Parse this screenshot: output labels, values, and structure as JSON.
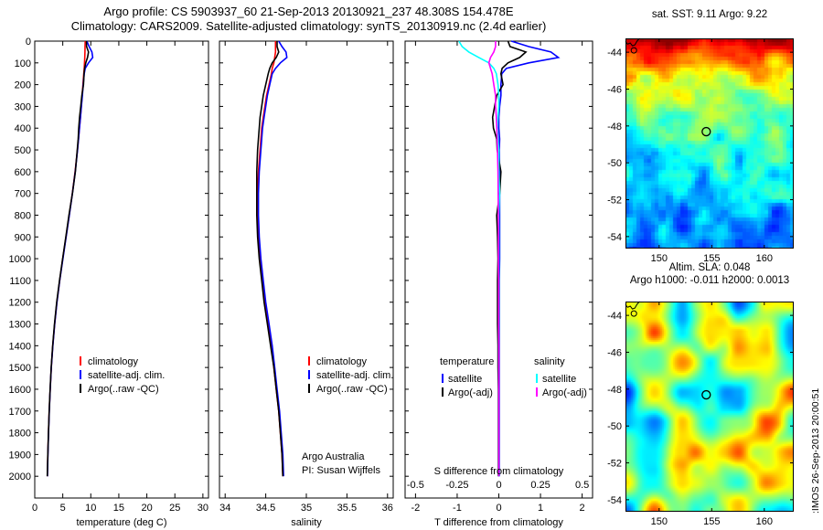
{
  "header": {
    "title_line1": "Argo profile: CS 5903937_60 21-Sep-2013 20130921_237 48.308S 154.478E",
    "title_line2": "Climatology: CARS2009. Satellite-adjusted climatology: synTS_20130919.nc (2.4d earlier)"
  },
  "watermark": ":IMOS 26-Sep-2013 20:00:51",
  "colors": {
    "climatology": "#ff0000",
    "satellite_adjusted": "#0000ff",
    "argo": "#000000",
    "satellite_salinity": "#00ffff",
    "argo_salinity": "#ff00ff"
  },
  "chart_data": [
    {
      "id": "temperature-profile",
      "type": "line",
      "xlabel": "temperature (deg C)",
      "xlim": [
        0,
        31
      ],
      "xticks": [
        0,
        5,
        10,
        15,
        20,
        25,
        30
      ],
      "ylim": [
        0,
        2100
      ],
      "yticks": [
        0,
        100,
        200,
        300,
        400,
        500,
        600,
        700,
        800,
        900,
        1000,
        1100,
        1200,
        1300,
        1400,
        1500,
        1600,
        1700,
        1800,
        1900,
        2000
      ],
      "legend": [
        {
          "label": "climatology",
          "color": "#ff0000"
        },
        {
          "label": "satellite-adj. clim.",
          "color": "#0000ff"
        },
        {
          "label": "Argo(..raw -QC)",
          "color": "#000000"
        }
      ],
      "depth_m": [
        0,
        25,
        50,
        75,
        100,
        125,
        150,
        200,
        250,
        300,
        350,
        400,
        450,
        500,
        600,
        700,
        800,
        900,
        1000,
        1100,
        1200,
        1300,
        1400,
        1500,
        1600,
        1700,
        1800,
        1900,
        2000
      ],
      "series": [
        {
          "name": "climatology",
          "color": "#ff0000",
          "values": [
            9.0,
            8.98,
            8.95,
            8.92,
            8.88,
            8.82,
            8.75,
            8.6,
            8.45,
            8.3,
            8.15,
            7.98,
            7.8,
            7.62,
            7.2,
            6.7,
            6.15,
            5.58,
            5.0,
            4.45,
            3.95,
            3.55,
            3.22,
            2.95,
            2.75,
            2.58,
            2.45,
            2.34,
            2.25
          ]
        },
        {
          "name": "satellite-adj. clim.",
          "color": "#0000ff",
          "values": [
            9.3,
            9.7,
            10.2,
            10.35,
            9.6,
            9.0,
            8.82,
            8.65,
            8.5,
            8.32,
            8.15,
            7.98,
            7.82,
            7.63,
            7.22,
            6.72,
            6.17,
            5.6,
            5.02,
            4.46,
            3.96,
            3.56,
            3.23,
            2.96,
            2.76,
            2.59,
            2.46,
            2.35,
            2.26
          ]
        },
        {
          "name": "Argo(..raw -QC)",
          "color": "#000000",
          "values": [
            9.22,
            9.25,
            9.6,
            9.42,
            9.1,
            8.9,
            8.8,
            8.7,
            8.4,
            8.2,
            8.0,
            7.85,
            7.75,
            7.58,
            7.25,
            6.72,
            6.1,
            5.55,
            4.98,
            4.42,
            3.92,
            3.52,
            3.2,
            2.93,
            2.74,
            2.57,
            2.44,
            2.33,
            2.24
          ]
        }
      ]
    },
    {
      "id": "salinity-profile",
      "type": "line",
      "xlabel": "salinity",
      "xlim": [
        33.93,
        36.07
      ],
      "xticks": [
        34,
        34.5,
        35,
        35.5,
        36
      ],
      "ylim": [
        0,
        2100
      ],
      "yticks": [
        0,
        100,
        200,
        300,
        400,
        500,
        600,
        700,
        800,
        900,
        1000,
        1100,
        1200,
        1300,
        1400,
        1500,
        1600,
        1700,
        1800,
        1900,
        2000
      ],
      "legend": [
        {
          "label": "climatology",
          "color": "#ff0000"
        },
        {
          "label": "satellite-adj. clim.",
          "color": "#0000ff"
        },
        {
          "label": "Argo(..raw -QC)",
          "color": "#000000"
        }
      ],
      "notes": [
        "Argo Australia",
        "PI: Susan Wijffels"
      ],
      "depth_m": [
        0,
        25,
        50,
        75,
        100,
        125,
        150,
        200,
        250,
        300,
        350,
        400,
        450,
        500,
        600,
        700,
        800,
        900,
        1000,
        1100,
        1200,
        1300,
        1400,
        1500,
        1600,
        1700,
        1800,
        1900,
        2000
      ],
      "series": [
        {
          "name": "climatology",
          "color": "#ff0000",
          "values": [
            34.62,
            34.62,
            34.62,
            34.61,
            34.6,
            34.58,
            34.57,
            34.54,
            34.51,
            34.49,
            34.47,
            34.45,
            34.44,
            34.43,
            34.41,
            34.4,
            34.4,
            34.41,
            34.43,
            34.46,
            34.49,
            34.53,
            34.57,
            34.6,
            34.63,
            34.66,
            34.68,
            34.7,
            34.71
          ]
        },
        {
          "name": "satellite-adj. clim.",
          "color": "#0000ff",
          "values": [
            34.66,
            34.7,
            34.75,
            34.76,
            34.68,
            34.62,
            34.58,
            34.55,
            34.52,
            34.5,
            34.48,
            34.46,
            34.45,
            34.44,
            34.42,
            34.41,
            34.41,
            34.42,
            34.44,
            34.47,
            34.5,
            34.54,
            34.58,
            34.61,
            34.64,
            34.67,
            34.69,
            34.71,
            34.72
          ]
        },
        {
          "name": "Argo(..raw -QC)",
          "color": "#000000",
          "values": [
            34.64,
            34.64,
            34.66,
            34.63,
            34.58,
            34.55,
            34.53,
            34.5,
            34.47,
            34.45,
            34.43,
            34.42,
            34.41,
            34.4,
            34.39,
            34.39,
            34.39,
            34.4,
            34.42,
            34.45,
            34.48,
            34.52,
            34.56,
            34.6,
            34.63,
            34.66,
            34.68,
            34.7,
            34.71
          ]
        }
      ]
    },
    {
      "id": "difference-profile",
      "type": "line",
      "xlabel": "T difference from climatology",
      "x2label": "S difference from climatology",
      "xlim": [
        -2.25,
        2.25
      ],
      "xticks": [
        -2,
        -1,
        0,
        1,
        2
      ],
      "x2ticks": [
        -0.5,
        -0.25,
        0,
        0.25,
        0.5
      ],
      "s_scale_factor": 4,
      "ylim": [
        0,
        2100
      ],
      "yticks": [
        0,
        100,
        200,
        300,
        400,
        500,
        600,
        700,
        800,
        900,
        1000,
        1100,
        1200,
        1300,
        1400,
        1500,
        1600,
        1700,
        1800,
        1900,
        2000
      ],
      "legend_groups": [
        {
          "header": "temperature",
          "entries": [
            {
              "label": "satellite",
              "color": "#0000ff"
            },
            {
              "label": "Argo(-adj)",
              "color": "#000000"
            }
          ]
        },
        {
          "header": "salinity",
          "entries": [
            {
              "label": "satellite",
              "color": "#00ffff"
            },
            {
              "label": "Argo(-adj)",
              "color": "#ff00ff"
            }
          ]
        }
      ],
      "depth_m": [
        0,
        25,
        50,
        75,
        100,
        125,
        150,
        200,
        250,
        300,
        350,
        400,
        450,
        500,
        600,
        700,
        800,
        900,
        1000,
        1100,
        1200,
        1300,
        1400,
        1500,
        1600,
        1700,
        1800,
        1900,
        2000
      ],
      "series": [
        {
          "name": "satellite T difference",
          "axis": "T",
          "color": "#0000ff",
          "values": [
            0.3,
            0.72,
            1.25,
            1.43,
            0.72,
            0.18,
            0.07,
            0.05,
            0.05,
            0.02,
            0.0,
            0.0,
            0.02,
            0.01,
            0.02,
            0.02,
            0.02,
            0.02,
            0.02,
            0.01,
            0.01,
            0.01,
            0.01,
            0.01,
            0.01,
            0.01,
            0.01,
            0.01,
            0.01
          ]
        },
        {
          "name": "Argo(-adj) T difference",
          "axis": "T",
          "color": "#000000",
          "values": [
            0.22,
            0.27,
            0.65,
            0.5,
            0.22,
            0.08,
            0.05,
            0.1,
            -0.05,
            -0.1,
            -0.15,
            -0.13,
            -0.05,
            -0.04,
            0.05,
            0.02,
            -0.05,
            -0.03,
            -0.02,
            -0.03,
            -0.03,
            -0.03,
            -0.02,
            -0.02,
            -0.01,
            -0.01,
            -0.01,
            -0.01,
            -0.01
          ]
        },
        {
          "name": "satellite S difference",
          "axis": "S",
          "color": "#00ffff",
          "values": [
            -0.24,
            -0.22,
            -0.18,
            -0.12,
            -0.06,
            -0.03,
            -0.015,
            -0.005,
            0.0,
            0.0,
            -0.005,
            -0.01,
            -0.005,
            0.0,
            0.0,
            0.005,
            0.0,
            0.0,
            0.0,
            0.0,
            0.0,
            0.0,
            0.0,
            0.0,
            0.0,
            0.0,
            0.0,
            0.0,
            0.0
          ]
        },
        {
          "name": "Argo(-adj) S difference",
          "axis": "S",
          "color": "#ff00ff",
          "values": [
            -0.02,
            -0.02,
            -0.03,
            -0.05,
            -0.06,
            -0.05,
            -0.04,
            -0.03,
            -0.02,
            -0.02,
            -0.015,
            -0.012,
            -0.01,
            -0.008,
            -0.005,
            -0.004,
            -0.003,
            -0.002,
            -0.002,
            -0.001,
            -0.001,
            -0.001,
            0.0,
            0.0,
            0.0,
            0.0,
            0.0,
            0.0,
            0.0
          ]
        }
      ]
    },
    {
      "id": "sst-map",
      "type": "heatmap",
      "title": "sat. SST: 9.11 Argo: 9.22",
      "values": {
        "sat_sst": 9.11,
        "argo_sst": 9.22
      },
      "xticks": [
        150,
        155,
        160
      ],
      "yticks": [
        -44,
        -46,
        -48,
        -50,
        -52,
        -54
      ],
      "lon_range": [
        146.8,
        162.8
      ],
      "lat_range": [
        -54.65,
        -43.25
      ],
      "float_marker": {
        "lon": 154.478,
        "lat": -48.308
      },
      "island_contour": {
        "lon": 147.6,
        "lat": -43.9
      },
      "coastline": [
        [
          146.8,
          -43.42
        ],
        [
          147.0,
          -43.56
        ],
        [
          147.25,
          -43.5
        ],
        [
          147.45,
          -43.65
        ],
        [
          147.7,
          -43.6
        ],
        [
          147.9,
          -43.4
        ],
        [
          148.05,
          -43.3
        ],
        [
          148.15,
          -43.25
        ]
      ],
      "palette": "jet",
      "description": "pixelated satellite SST field, warm red/orange north grading through green to cool blue south"
    },
    {
      "id": "sla-map",
      "type": "heatmap",
      "title_line1": "Altim. SLA: 0.048",
      "title_line2": "Argo h1000: -0.011 h2000: 0.0013",
      "values": {
        "altim_sla": 0.048,
        "argo_h1000": -0.011,
        "argo_h2000": 0.0013
      },
      "xticks": [
        150,
        155,
        160
      ],
      "yticks": [
        -44,
        -46,
        -48,
        -50,
        -52,
        -54
      ],
      "lon_range": [
        146.8,
        162.8
      ],
      "lat_range": [
        -54.65,
        -43.25
      ],
      "float_marker": {
        "lon": 154.478,
        "lat": -48.308
      },
      "island_contour": {
        "lon": 147.6,
        "lat": -43.9
      },
      "coastline": [
        [
          146.8,
          -43.42
        ],
        [
          147.0,
          -43.56
        ],
        [
          147.25,
          -43.5
        ],
        [
          147.45,
          -43.65
        ],
        [
          147.7,
          -43.6
        ],
        [
          147.9,
          -43.4
        ],
        [
          148.05,
          -43.3
        ],
        [
          148.15,
          -43.25
        ]
      ],
      "palette": "jet",
      "description": "smooth altimetric sea-level anomaly field, mostly green with blue lows and yellow/orange highs"
    }
  ]
}
